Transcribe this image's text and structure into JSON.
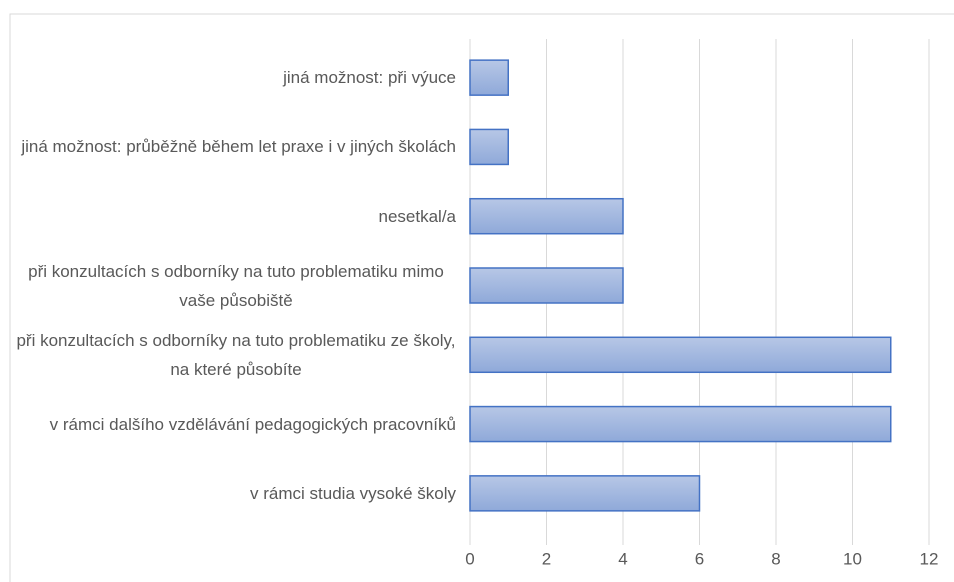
{
  "chart_data": {
    "type": "bar",
    "orientation": "horizontal",
    "categories": [
      "jiná možnost: při výuce",
      "jiná možnost: průběžně během let praxe i v jiných školách",
      "nesetkal/a",
      "při konzultacích s odborníky na tuto problematiku mimo vaše působiště",
      "při konzultacích s odborníky na tuto problematiku ze školy, na které působíte",
      "v rámci dalšího vzdělávání pedagogických pracovníků",
      "v rámci studia vysoké školy"
    ],
    "values": [
      1,
      1,
      4,
      4,
      11,
      11,
      6
    ],
    "color": "#4472c4",
    "xlim": [
      0,
      12
    ],
    "xticks": [
      0,
      2,
      4,
      6,
      8,
      10,
      12
    ],
    "grid": true
  }
}
